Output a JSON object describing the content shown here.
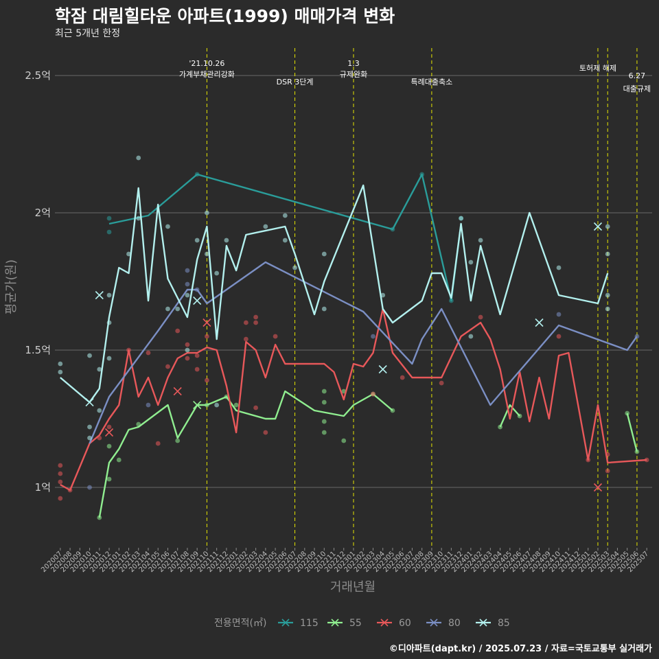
{
  "chart_data": {
    "type": "line",
    "title": "학잠 대림힐타운 아파트(1999) 매매가격 변화",
    "subtitle": "최근 5개년 한정",
    "caption": "©디아파트(dapt.kr) / 2025.07.23 / 자료=국토교통부 실거래가",
    "xlabel": "거래년월",
    "ylabel": "평균가(원)",
    "y_unit": "억",
    "ylim": [
      0.78,
      2.6
    ],
    "y_ticks": [
      {
        "value": 1.0,
        "label": "1억"
      },
      {
        "value": 1.5,
        "label": "1.5억"
      },
      {
        "value": 2.0,
        "label": "2억"
      },
      {
        "value": 2.5,
        "label": "2.5억"
      }
    ],
    "categories": [
      "202007",
      "202008",
      "202009",
      "202010",
      "202011",
      "202012",
      "202101",
      "202102",
      "202103",
      "202104",
      "202105",
      "202106",
      "202107",
      "202108",
      "202109",
      "202110",
      "202111",
      "202112",
      "202201",
      "202202",
      "202203",
      "202204",
      "202205",
      "202206",
      "202207",
      "202208",
      "202209",
      "202210",
      "202211",
      "202212",
      "202301",
      "202302",
      "202303",
      "202304",
      "202305",
      "202306",
      "202307",
      "202308",
      "202309",
      "202310",
      "202311",
      "202312",
      "202401",
      "202402",
      "202403",
      "202404",
      "202405",
      "202406",
      "202407",
      "202408",
      "202409",
      "202410",
      "202411",
      "202412",
      "202501",
      "202502",
      "202503",
      "202504",
      "202505",
      "202506",
      "202507"
    ],
    "grid": true,
    "legend_title": "전용면적(㎡)",
    "legend_position": "bottom",
    "events": [
      {
        "month": "202110",
        "line1": "'21.10.26",
        "line2": "가계부채관리강화"
      },
      {
        "month": "202207",
        "line1": "DSR 3단계",
        "line2": ""
      },
      {
        "month": "202301",
        "line1": "1.3",
        "line2": "규제완화"
      },
      {
        "month": "202309",
        "line1": "특례대출축소",
        "line2": ""
      },
      {
        "month": "202502",
        "line1": "토허제 해제",
        "line2": ""
      },
      {
        "month": "202503",
        "line1": "",
        "line2": ""
      },
      {
        "month": "202506",
        "line1": "6.27",
        "line2": "대출규제"
      }
    ],
    "series": [
      {
        "name": "115",
        "color": "#2a9d9a",
        "line": [
          [
            "202012",
            1.96
          ],
          [
            "202104",
            1.99
          ],
          [
            "202105",
            2.02
          ],
          [
            "202109",
            2.14
          ],
          [
            "202305",
            1.94
          ],
          [
            "202308",
            2.14
          ],
          [
            "202311",
            1.68
          ],
          [
            "202312",
            1.96
          ]
        ],
        "points": [
          [
            "202012",
            1.98
          ],
          [
            "202012",
            1.93
          ],
          [
            "202109",
            2.14
          ],
          [
            "202305",
            1.94
          ],
          [
            "202308",
            2.14
          ],
          [
            "202311",
            1.68
          ],
          [
            "202312",
            1.98
          ]
        ],
        "cancelled": []
      },
      {
        "name": "55",
        "color": "#90ee90",
        "line": [
          [
            "202011",
            0.89
          ],
          [
            "202012",
            1.09
          ],
          [
            "202101",
            1.14
          ],
          [
            "202102",
            1.21
          ],
          [
            "202103",
            1.22
          ],
          [
            "202106",
            1.3
          ],
          [
            "202107",
            1.18
          ],
          [
            "202109",
            1.3
          ],
          [
            "202110",
            1.3
          ],
          [
            "202112",
            1.33
          ],
          [
            "202201",
            1.28
          ],
          [
            "202204",
            1.25
          ],
          [
            "202205",
            1.25
          ],
          [
            "202206",
            1.35
          ],
          [
            "202209",
            1.28
          ],
          [
            "202212",
            1.26
          ],
          [
            "202301",
            1.3
          ],
          [
            "202303",
            1.34
          ],
          [
            "202305",
            1.28
          ]
        ],
        "points": [
          [
            "202011",
            0.89
          ],
          [
            "202012",
            1.03
          ],
          [
            "202012",
            1.15
          ],
          [
            "202101",
            1.1
          ],
          [
            "202103",
            1.23
          ],
          [
            "202107",
            1.17
          ],
          [
            "202110",
            1.3
          ],
          [
            "202112",
            1.33
          ],
          [
            "202201",
            1.3
          ],
          [
            "202210",
            1.35
          ],
          [
            "202210",
            1.31
          ],
          [
            "202210",
            1.24
          ],
          [
            "202210",
            1.2
          ],
          [
            "202212",
            1.17
          ],
          [
            "202212",
            1.35
          ],
          [
            "202303",
            1.34
          ],
          [
            "202305",
            1.28
          ],
          [
            "202404",
            1.22
          ],
          [
            "202406",
            1.26
          ],
          [
            "202505",
            1.27
          ],
          [
            "202506",
            1.13
          ]
        ],
        "cancelled": [
          [
            "202109",
            1.3
          ]
        ],
        "segments": [
          [
            [
              "202404",
              1.22
            ],
            [
              "202405",
              1.3
            ],
            [
              "202406",
              1.26
            ]
          ],
          [
            [
              "202505",
              1.27
            ],
            [
              "202506",
              1.13
            ]
          ]
        ]
      },
      {
        "name": "60",
        "color": "#e8585a",
        "line": [
          [
            "202007",
            1.01
          ],
          [
            "202008",
            0.99
          ],
          [
            "202010",
            1.16
          ],
          [
            "202011",
            1.19
          ],
          [
            "202012",
            1.25
          ],
          [
            "202101",
            1.3
          ],
          [
            "202102",
            1.5
          ],
          [
            "202103",
            1.33
          ],
          [
            "202104",
            1.4
          ],
          [
            "202105",
            1.3
          ],
          [
            "202106",
            1.4
          ],
          [
            "202107",
            1.47
          ],
          [
            "202108",
            1.49
          ],
          [
            "202109",
            1.49
          ],
          [
            "202110",
            1.51
          ],
          [
            "202111",
            1.5
          ],
          [
            "202112",
            1.37
          ],
          [
            "202201",
            1.2
          ],
          [
            "202202",
            1.53
          ],
          [
            "202203",
            1.5
          ],
          [
            "202204",
            1.4
          ],
          [
            "202205",
            1.52
          ],
          [
            "202206",
            1.45
          ],
          [
            "202210",
            1.45
          ],
          [
            "202211",
            1.42
          ],
          [
            "202212",
            1.32
          ],
          [
            "202301",
            1.45
          ],
          [
            "202302",
            1.44
          ],
          [
            "202303",
            1.49
          ],
          [
            "202304",
            1.65
          ],
          [
            "202305",
            1.49
          ],
          [
            "202307",
            1.4
          ],
          [
            "202310",
            1.4
          ],
          [
            "202312",
            1.55
          ],
          [
            "202402",
            1.6
          ],
          [
            "202403",
            1.54
          ],
          [
            "202404",
            1.43
          ],
          [
            "202405",
            1.25
          ],
          [
            "202406",
            1.42
          ],
          [
            "202407",
            1.24
          ],
          [
            "202408",
            1.4
          ],
          [
            "202409",
            1.25
          ],
          [
            "202410",
            1.48
          ],
          [
            "202411",
            1.49
          ],
          [
            "202501",
            1.1
          ],
          [
            "202502",
            1.3
          ],
          [
            "202503",
            1.09
          ],
          [
            "202507",
            1.1
          ]
        ],
        "points": [
          [
            "202007",
            1.08
          ],
          [
            "202007",
            1.05
          ],
          [
            "202007",
            1.02
          ],
          [
            "202007",
            0.96
          ],
          [
            "202008",
            0.99
          ],
          [
            "202011",
            1.18
          ],
          [
            "202012",
            1.22
          ],
          [
            "202102",
            1.5
          ],
          [
            "202104",
            1.49
          ],
          [
            "202105",
            1.16
          ],
          [
            "202106",
            1.44
          ],
          [
            "202107",
            1.57
          ],
          [
            "202108",
            1.47
          ],
          [
            "202108",
            1.52
          ],
          [
            "202109",
            1.43
          ],
          [
            "202109",
            1.48
          ],
          [
            "202110",
            1.55
          ],
          [
            "202110",
            1.39
          ],
          [
            "202202",
            1.54
          ],
          [
            "202202",
            1.6
          ],
          [
            "202203",
            1.62
          ],
          [
            "202203",
            1.6
          ],
          [
            "202203",
            1.29
          ],
          [
            "202204",
            1.2
          ],
          [
            "202205",
            1.55
          ],
          [
            "202303",
            1.34
          ],
          [
            "202306",
            1.4
          ],
          [
            "202310",
            1.38
          ],
          [
            "202402",
            1.62
          ],
          [
            "202410",
            1.55
          ],
          [
            "202501",
            1.1
          ],
          [
            "202503",
            1.12
          ],
          [
            "202503",
            1.06
          ],
          [
            "202507",
            1.1
          ]
        ],
        "cancelled": [
          [
            "202012",
            1.2
          ],
          [
            "202107",
            1.35
          ],
          [
            "202110",
            1.6
          ],
          [
            "202502",
            1.0
          ]
        ]
      },
      {
        "name": "80",
        "color": "#7b8fc4",
        "line": [
          [
            "202010",
            1.16
          ],
          [
            "202012",
            1.33
          ],
          [
            "202105",
            1.57
          ],
          [
            "202108",
            1.72
          ],
          [
            "202109",
            1.72
          ],
          [
            "202110",
            1.67
          ],
          [
            "202204",
            1.82
          ],
          [
            "202302",
            1.64
          ],
          [
            "202307",
            1.45
          ],
          [
            "202308",
            1.54
          ],
          [
            "202310",
            1.65
          ],
          [
            "202403",
            1.3
          ],
          [
            "202410",
            1.59
          ],
          [
            "202505",
            1.5
          ],
          [
            "202506",
            1.55
          ]
        ],
        "points": [
          [
            "202010",
            1.0
          ],
          [
            "202104",
            1.3
          ],
          [
            "202108",
            1.79
          ],
          [
            "202108",
            1.74
          ],
          [
            "202109",
            1.72
          ],
          [
            "202303",
            1.55
          ],
          [
            "202410",
            1.63
          ],
          [
            "202506",
            1.55
          ]
        ],
        "cancelled": []
      },
      {
        "name": "85",
        "color": "#b3f0ee",
        "line": [
          [
            "202007",
            1.4
          ],
          [
            "202010",
            1.31
          ],
          [
            "202011",
            1.36
          ],
          [
            "202012",
            1.62
          ],
          [
            "202101",
            1.8
          ],
          [
            "202102",
            1.78
          ],
          [
            "202103",
            2.09
          ],
          [
            "202104",
            1.68
          ],
          [
            "202105",
            2.03
          ],
          [
            "202106",
            1.76
          ],
          [
            "202108",
            1.62
          ],
          [
            "202109",
            1.83
          ],
          [
            "202110",
            1.95
          ],
          [
            "202111",
            1.54
          ],
          [
            "202112",
            1.88
          ],
          [
            "202201",
            1.79
          ],
          [
            "202202",
            1.92
          ],
          [
            "202206",
            1.95
          ],
          [
            "202207",
            1.85
          ],
          [
            "202209",
            1.63
          ],
          [
            "202210",
            1.75
          ],
          [
            "202302",
            2.1
          ],
          [
            "202304",
            1.65
          ],
          [
            "202305",
            1.6
          ],
          [
            "202308",
            1.68
          ],
          [
            "202309",
            1.78
          ],
          [
            "202310",
            1.78
          ],
          [
            "202311",
            1.69
          ],
          [
            "202312",
            1.96
          ],
          [
            "202401",
            1.68
          ],
          [
            "202402",
            1.88
          ],
          [
            "202404",
            1.63
          ],
          [
            "202407",
            2.0
          ],
          [
            "202410",
            1.7
          ],
          [
            "202502",
            1.67
          ],
          [
            "202503",
            1.78
          ]
        ],
        "points": [
          [
            "202007",
            1.45
          ],
          [
            "202007",
            1.42
          ],
          [
            "202010",
            1.22
          ],
          [
            "202010",
            1.18
          ],
          [
            "202010",
            1.48
          ],
          [
            "202011",
            1.43
          ],
          [
            "202011",
            1.28
          ],
          [
            "202012",
            1.6
          ],
          [
            "202012",
            1.7
          ],
          [
            "202012",
            1.47
          ],
          [
            "202103",
            2.2
          ],
          [
            "202103",
            1.98
          ],
          [
            "202102",
            1.85
          ],
          [
            "202106",
            1.95
          ],
          [
            "202106",
            1.65
          ],
          [
            "202107",
            1.65
          ],
          [
            "202108",
            1.5
          ],
          [
            "202108",
            1.7
          ],
          [
            "202109",
            1.9
          ],
          [
            "202110",
            2.0
          ],
          [
            "202110",
            1.85
          ],
          [
            "202111",
            1.78
          ],
          [
            "202111",
            1.3
          ],
          [
            "202112",
            1.9
          ],
          [
            "202204",
            1.95
          ],
          [
            "202206",
            1.99
          ],
          [
            "202206",
            1.9
          ],
          [
            "202207",
            1.8
          ],
          [
            "202210",
            1.85
          ],
          [
            "202210",
            1.65
          ],
          [
            "202304",
            1.7
          ],
          [
            "202312",
            1.98
          ],
          [
            "202401",
            1.82
          ],
          [
            "202401",
            1.55
          ],
          [
            "202402",
            1.9
          ],
          [
            "202410",
            1.8
          ],
          [
            "202503",
            1.95
          ],
          [
            "202503",
            1.85
          ],
          [
            "202503",
            1.7
          ],
          [
            "202503",
            1.65
          ]
        ],
        "cancelled": [
          [
            "202011",
            1.7
          ],
          [
            "202109",
            1.68
          ],
          [
            "202304",
            1.43
          ],
          [
            "202408",
            1.6
          ],
          [
            "202502",
            1.95
          ],
          [
            "202010",
            1.31
          ]
        ]
      }
    ]
  }
}
